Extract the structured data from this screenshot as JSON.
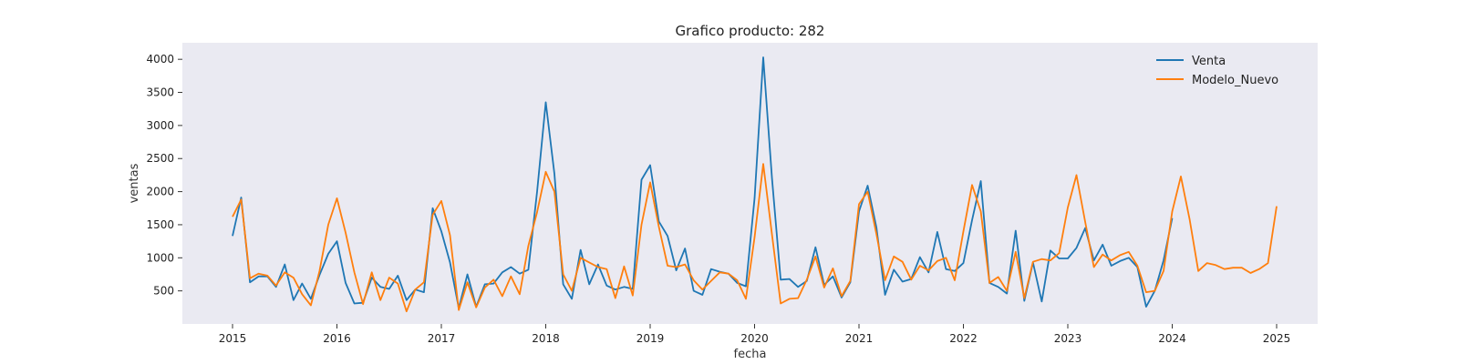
{
  "chart_data": {
    "type": "line",
    "title": "Grafico producto: 282",
    "xlabel": "fecha",
    "ylabel": "ventas",
    "x_axis": "monthly dates",
    "x_start": "2015-01",
    "xticks": [
      "2015",
      "2016",
      "2017",
      "2018",
      "2019",
      "2020",
      "2021",
      "2022",
      "2023",
      "2024",
      "2025"
    ],
    "yticks": [
      500,
      1000,
      1500,
      2000,
      2500,
      3000,
      3500,
      4000
    ],
    "ylim": [
      0,
      4250
    ],
    "grid": false,
    "background": "#eaeaf2",
    "legend_position": "top-right",
    "series": [
      {
        "name": "Venta",
        "color": "#1f77b4",
        "values": [
          1330,
          1910,
          630,
          720,
          720,
          560,
          900,
          360,
          610,
          380,
          740,
          1060,
          1250,
          620,
          310,
          320,
          700,
          560,
          530,
          730,
          360,
          520,
          480,
          1750,
          1400,
          930,
          240,
          750,
          260,
          600,
          610,
          780,
          860,
          760,
          820,
          2000,
          3350,
          2270,
          600,
          380,
          1120,
          600,
          900,
          580,
          520,
          560,
          530,
          2180,
          2400,
          1550,
          1330,
          810,
          1140,
          500,
          440,
          830,
          790,
          760,
          620,
          570,
          1900,
          4030,
          2200,
          670,
          680,
          560,
          650,
          1160,
          590,
          720,
          400,
          630,
          1700,
          2090,
          1460,
          440,
          820,
          640,
          680,
          1010,
          780,
          1390,
          830,
          800,
          920,
          1570,
          2160,
          620,
          560,
          460,
          1410,
          350,
          930,
          340,
          1110,
          990,
          990,
          1150,
          1450,
          960,
          1200,
          880,
          950,
          1000,
          860,
          260,
          500,
          960,
          1600
        ]
      },
      {
        "name": "Modelo_Nuevo",
        "color": "#ff7f0e",
        "values": [
          1620,
          1880,
          690,
          760,
          730,
          580,
          780,
          700,
          450,
          280,
          800,
          1500,
          1900,
          1380,
          780,
          300,
          780,
          360,
          700,
          610,
          190,
          520,
          630,
          1650,
          1860,
          1340,
          210,
          630,
          250,
          550,
          670,
          420,
          720,
          450,
          1180,
          1690,
          2300,
          2000,
          750,
          500,
          1000,
          930,
          860,
          830,
          390,
          870,
          430,
          1500,
          2140,
          1470,
          880,
          860,
          900,
          660,
          520,
          650,
          780,
          760,
          660,
          380,
          1310,
          2420,
          1350,
          310,
          380,
          390,
          670,
          1020,
          550,
          840,
          420,
          650,
          1810,
          2000,
          1360,
          660,
          1020,
          940,
          670,
          880,
          810,
          950,
          1000,
          660,
          1400,
          2100,
          1700,
          620,
          710,
          500,
          1090,
          390,
          940,
          980,
          960,
          1070,
          1760,
          2250,
          1540,
          860,
          1050,
          960,
          1040,
          1090,
          880,
          480,
          500,
          800,
          1700,
          2230,
          1580,
          800,
          920,
          890,
          830,
          850,
          850,
          770,
          830,
          920,
          1780
        ]
      }
    ]
  }
}
